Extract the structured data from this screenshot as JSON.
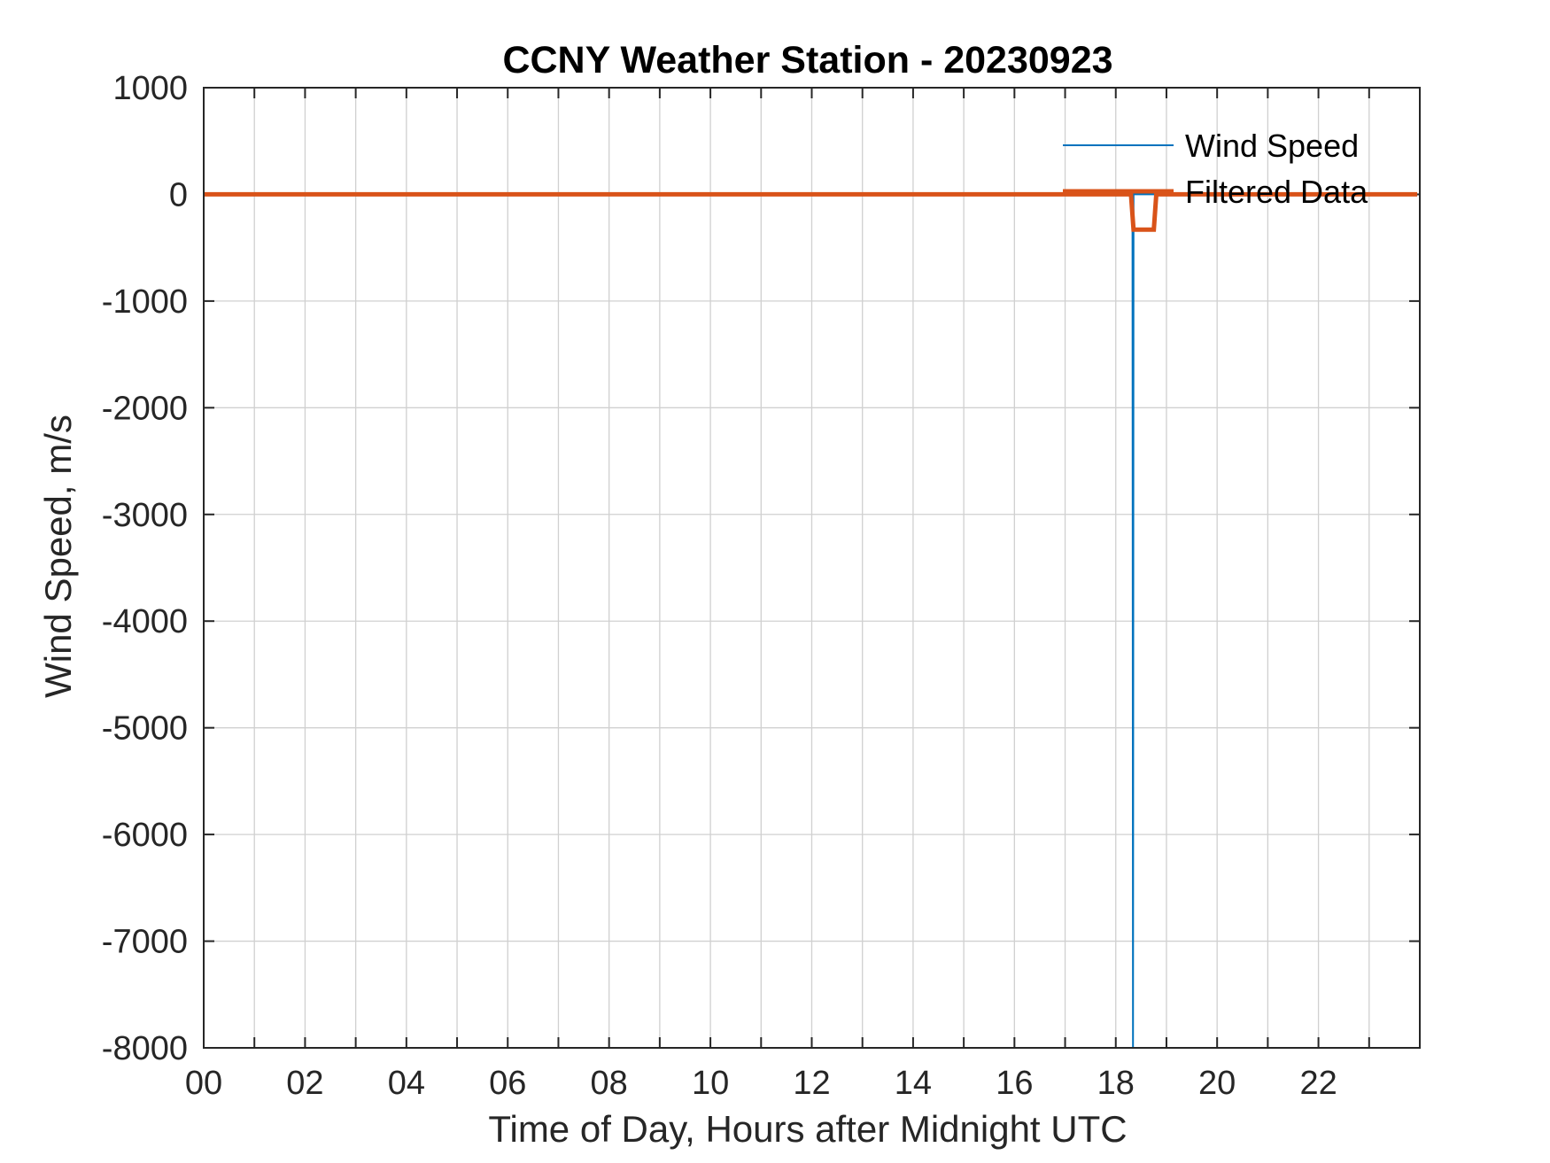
{
  "chart_data": {
    "type": "line",
    "title": "CCNY Weather Station - 20230923",
    "xlabel": "Time of Day, Hours after Midnight UTC",
    "ylabel": "Wind Speed, m/s",
    "xlim": [
      0,
      24
    ],
    "ylim": [
      -8000,
      1000
    ],
    "x_major_ticks": [
      0,
      2,
      4,
      6,
      8,
      10,
      12,
      14,
      16,
      18,
      20,
      22
    ],
    "x_tick_labels": [
      "00",
      "02",
      "04",
      "06",
      "08",
      "10",
      "12",
      "14",
      "16",
      "18",
      "20",
      "22"
    ],
    "x_minor_ticks": [
      1,
      3,
      5,
      7,
      9,
      11,
      13,
      15,
      17,
      19,
      21,
      23
    ],
    "y_ticks": [
      1000,
      0,
      -1000,
      -2000,
      -3000,
      -4000,
      -5000,
      -6000,
      -7000,
      -8000
    ],
    "y_tick_labels": [
      "1000",
      "0",
      "-1000",
      "-2000",
      "-3000",
      "-4000",
      "-5000",
      "-6000",
      "-7000",
      "-8000"
    ],
    "grid": true,
    "legend_position": "top-right",
    "series": [
      {
        "name": "Wind Speed",
        "color": "#0072BD",
        "x": [
          0,
          18.33,
          18.34,
          18.35,
          23.95
        ],
        "y": [
          0,
          0,
          -8000,
          0,
          0
        ]
      },
      {
        "name": "Filtered Data",
        "color": "#D95319",
        "x": [
          0,
          18.3,
          18.35,
          18.75,
          18.8,
          23.95
        ],
        "y": [
          0,
          0,
          -330,
          -330,
          0,
          0
        ]
      }
    ]
  }
}
